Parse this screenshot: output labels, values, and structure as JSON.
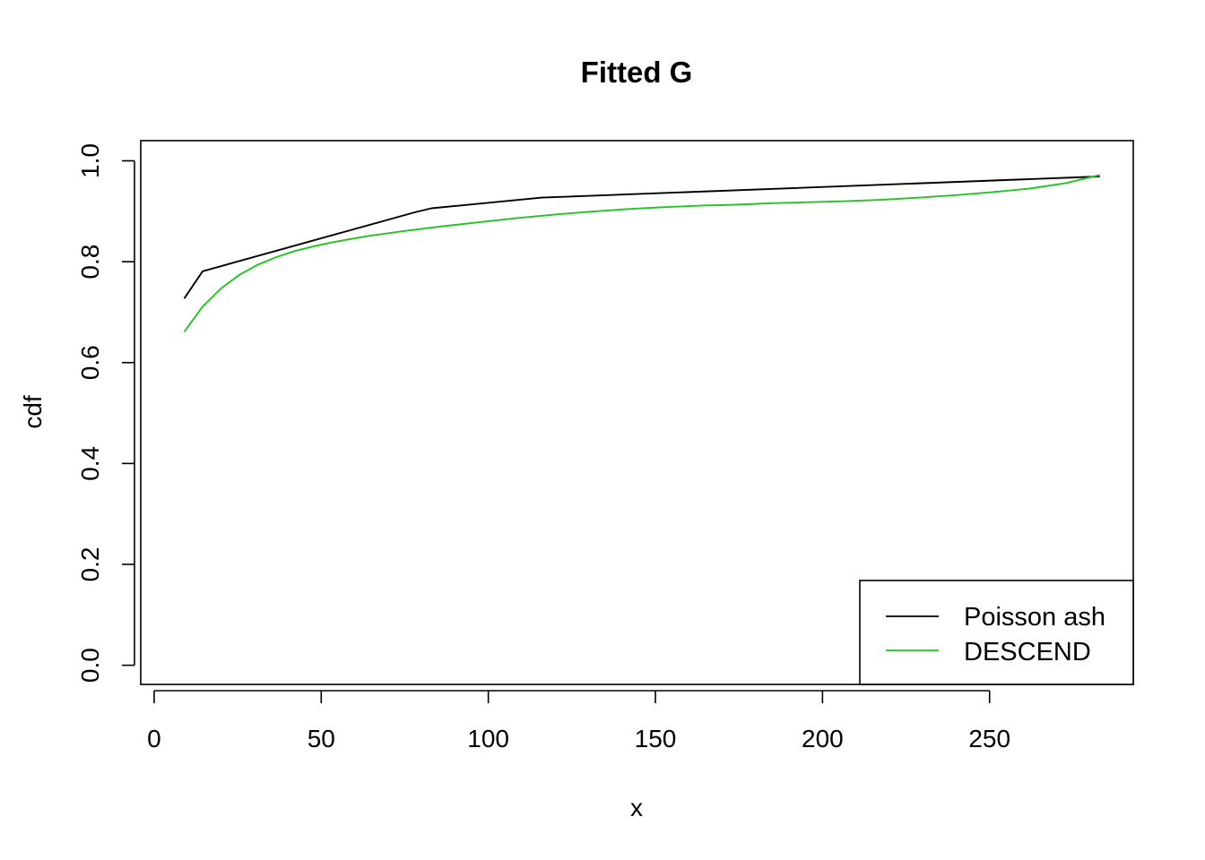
{
  "chart_data": {
    "type": "line",
    "title": "Fitted G",
    "xlabel": "x",
    "ylabel": "cdf",
    "xlim": [
      -4,
      293
    ],
    "ylim": [
      -0.038,
      1.04
    ],
    "x_ticks": [
      0,
      50,
      100,
      150,
      200,
      250
    ],
    "y_ticks": [
      0.0,
      0.2,
      0.4,
      0.6,
      0.8,
      1.0
    ],
    "x_tick_labels": [
      "0",
      "50",
      "100",
      "150",
      "200",
      "250"
    ],
    "y_tick_labels": [
      "0.0",
      "0.2",
      "0.4",
      "0.6",
      "0.8",
      "1.0"
    ],
    "grid": false,
    "legend_position": "bottom-right",
    "series": [
      {
        "name": "Poisson ash",
        "color": "#000000",
        "x": [
          9,
          14.5,
          78,
          83,
          116,
          283
        ],
        "y": [
          0.727,
          0.781,
          0.898,
          0.906,
          0.927,
          0.969
        ]
      },
      {
        "name": "DESCEND",
        "color": "#22c322",
        "x": [
          9,
          14.5,
          20,
          25.5,
          31,
          36.5,
          42,
          47.5,
          53,
          64,
          75,
          86,
          97,
          108,
          119,
          130,
          141,
          152,
          163,
          174,
          185,
          196,
          207,
          218,
          229,
          240,
          251,
          262,
          273,
          283
        ],
        "y": [
          0.661,
          0.711,
          0.747,
          0.774,
          0.794,
          0.809,
          0.821,
          0.83,
          0.838,
          0.851,
          0.861,
          0.87,
          0.878,
          0.886,
          0.893,
          0.899,
          0.904,
          0.908,
          0.911,
          0.913,
          0.916,
          0.918,
          0.92,
          0.923,
          0.927,
          0.932,
          0.938,
          0.945,
          0.956,
          0.972
        ]
      }
    ]
  }
}
